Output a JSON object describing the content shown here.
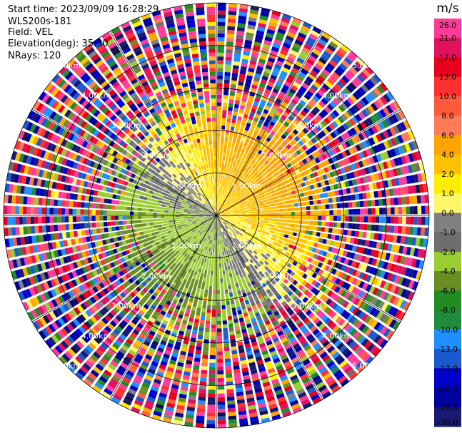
{
  "header": {
    "start_time": "Start time: 2023/09/09 16:28:29",
    "instrument": "WLS200s-181",
    "field": "Field: VEL",
    "elevation": "Elevation(deg): 35.30",
    "nrays": "NRays: 120"
  },
  "chart_data": {
    "type": "heatmap",
    "subtype": "polar-ppi",
    "field": "VEL",
    "unit": "m/s",
    "nrays": 120,
    "range_max_km": 5.0,
    "range_ring_labels": [
      "1.00km",
      "2.00km",
      "3.00km",
      "4.00km",
      "5.00km"
    ],
    "colorbar": {
      "ticks": [
        "26.0",
        "21.0",
        "17.0",
        "13.0",
        "10.0",
        "8.0",
        "6.0",
        "4.0",
        "2.0",
        "1.0",
        "0.0",
        "-1.0",
        "-2.0",
        "-4.0",
        "-6.0",
        "-8.0",
        "-10.0",
        "-13.0",
        "-17.0",
        "-21.0",
        "-26.0",
        "-30.0"
      ],
      "colors": [
        "#ff3b9a",
        "#e0115f",
        "#e8001c",
        "#ff3030",
        "#ff5a3c",
        "#ff7a55",
        "#ffa500",
        "#ffc000",
        "#ffee00",
        "#fff66a",
        "#808080",
        "#6e6e6e",
        "#9acd32",
        "#6b8e23",
        "#228b22",
        "#1e8c3a",
        "#1e90ff",
        "#1a5acc",
        "#0000cd",
        "#0000a0",
        "#191970",
        "#101050"
      ]
    },
    "velocity_classes": [
      {
        "min": 4,
        "max": 8,
        "sector": "north-east, mid range"
      },
      {
        "min": 1,
        "max": 2,
        "sector": "inner east"
      },
      {
        "min": -2,
        "max": -1,
        "sector": "inner west"
      },
      {
        "min": -8,
        "max": -4,
        "sector": "south-west"
      },
      {
        "min": -13,
        "max": -10,
        "sector": "outer west"
      }
    ]
  }
}
